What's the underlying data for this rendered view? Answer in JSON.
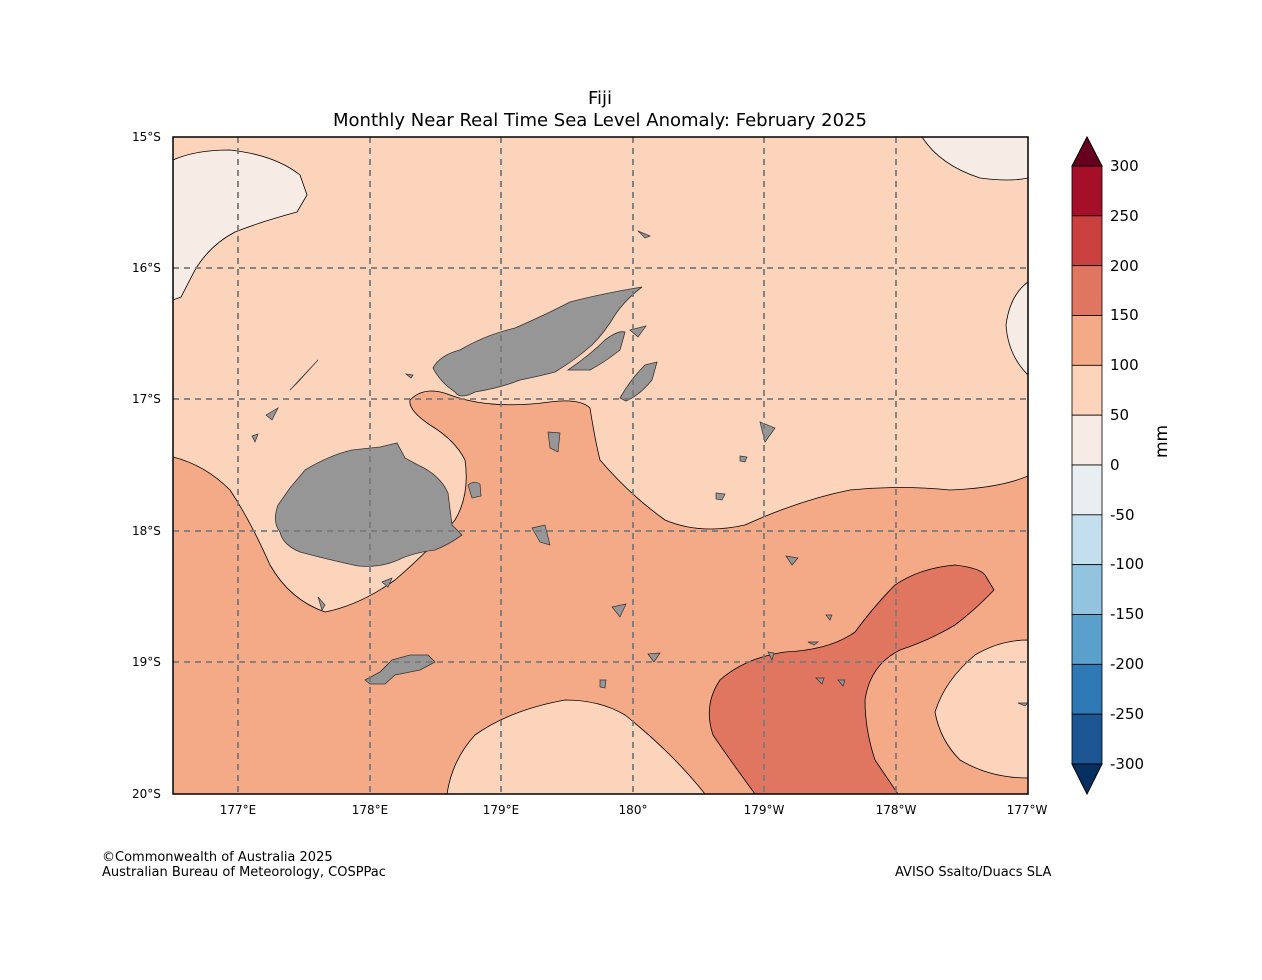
{
  "title": {
    "line1": "Fiji",
    "line2": "Monthly Near Real Time Sea Level Anomaly: February 2025"
  },
  "map": {
    "lat_range": [
      -20,
      -15
    ],
    "lon_range_east": [
      176.5,
      183.0
    ],
    "lat_ticks": [
      "15°S",
      "16°S",
      "17°S",
      "18°S",
      "19°S",
      "20°S"
    ],
    "lon_ticks": [
      "177°E",
      "178°E",
      "179°E",
      "180°",
      "179°W",
      "178°W",
      "177°W"
    ],
    "gridlines": "dashed",
    "land_color": "#969696"
  },
  "colorbar": {
    "units": "mm",
    "levels": [
      "300",
      "250",
      "200",
      "150",
      "100",
      "50",
      "0",
      "-50",
      "-100",
      "-150",
      "-200",
      "-250",
      "-300"
    ],
    "colors_top_to_bottom": [
      "#a50f2a",
      "#c9403f",
      "#e07560",
      "#f4a987",
      "#fcd3bb",
      "#f7ece5",
      "#e9eef2",
      "#c3dfee",
      "#92c3df",
      "#5aa0cd",
      "#2f78b6",
      "#1b5594"
    ],
    "over_color": "#67001f",
    "under_color": "#053061"
  },
  "footer": {
    "copyright": "©Commonwealth of Australia 2025",
    "agency": "Australian Bureau of Meteorology, COSPPac",
    "source": "AVISO Ssalto/Duacs SLA"
  }
}
